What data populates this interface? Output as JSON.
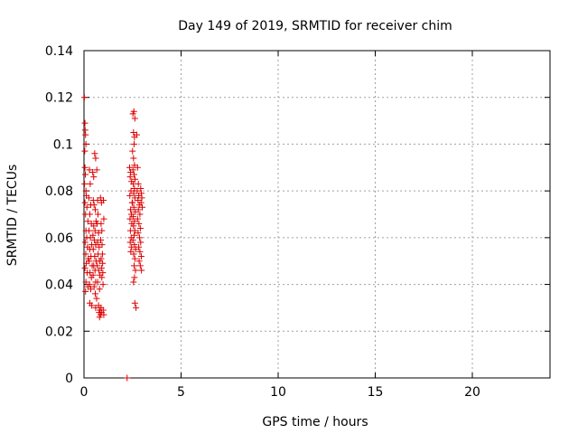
{
  "chart_data": {
    "type": "scatter",
    "title": "Day 149 of 2019, SRMTID for receiver chim",
    "xlabel": "GPS time / hours",
    "ylabel": "SRMTID / TECUs",
    "xlim": [
      0,
      24
    ],
    "ylim": [
      0,
      0.14
    ],
    "xticks": [
      "0",
      "5",
      "10",
      "15",
      "20"
    ],
    "xtick_values": [
      0,
      5,
      10,
      15,
      20
    ],
    "yticks": [
      "0",
      "0.02",
      "0.04",
      "0.06",
      "0.08",
      "0.1",
      "0.12",
      "0.14"
    ],
    "ytick_values": [
      0,
      0.02,
      0.04,
      0.06,
      0.08,
      0.1,
      0.12,
      0.14
    ],
    "grid": true,
    "marker": "plus",
    "color": "#dd0000",
    "series": [
      {
        "points": [
          [
            0.02,
            0.12
          ],
          [
            0.05,
            0.109
          ],
          [
            0.06,
            0.106
          ],
          [
            0.08,
            0.104
          ],
          [
            0.1,
            0.1
          ],
          [
            0.04,
            0.097
          ],
          [
            0.05,
            0.09
          ],
          [
            0.07,
            0.087
          ],
          [
            0.03,
            0.083
          ],
          [
            0.1,
            0.08
          ],
          [
            0.12,
            0.078
          ],
          [
            0.05,
            0.075
          ],
          [
            0.15,
            0.073
          ],
          [
            0.08,
            0.07
          ],
          [
            0.2,
            0.067
          ],
          [
            0.1,
            0.063
          ],
          [
            0.14,
            0.06
          ],
          [
            0.06,
            0.058
          ],
          [
            0.18,
            0.056
          ],
          [
            0.09,
            0.053
          ],
          [
            0.22,
            0.051
          ],
          [
            0.12,
            0.049
          ],
          [
            0.05,
            0.047
          ],
          [
            0.16,
            0.045
          ],
          [
            0.1,
            0.041
          ],
          [
            0.2,
            0.039
          ],
          [
            0.08,
            0.037
          ],
          [
            0.28,
            0.089
          ],
          [
            0.32,
            0.083
          ],
          [
            0.25,
            0.077
          ],
          [
            0.35,
            0.074
          ],
          [
            0.3,
            0.07
          ],
          [
            0.38,
            0.066
          ],
          [
            0.26,
            0.063
          ],
          [
            0.33,
            0.06
          ],
          [
            0.4,
            0.057
          ],
          [
            0.3,
            0.055
          ],
          [
            0.36,
            0.052
          ],
          [
            0.27,
            0.05
          ],
          [
            0.42,
            0.048
          ],
          [
            0.31,
            0.045
          ],
          [
            0.38,
            0.043
          ],
          [
            0.29,
            0.04
          ],
          [
            0.35,
            0.038
          ],
          [
            0.3,
            0.032
          ],
          [
            0.4,
            0.031
          ],
          [
            0.45,
            0.088
          ],
          [
            0.5,
            0.086
          ],
          [
            0.55,
            0.096
          ],
          [
            0.6,
            0.094
          ],
          [
            0.48,
            0.076
          ],
          [
            0.52,
            0.074
          ],
          [
            0.58,
            0.072
          ],
          [
            0.62,
            0.067
          ],
          [
            0.5,
            0.065
          ],
          [
            0.57,
            0.063
          ],
          [
            0.46,
            0.061
          ],
          [
            0.53,
            0.059
          ],
          [
            0.6,
            0.057
          ],
          [
            0.48,
            0.055
          ],
          [
            0.55,
            0.052
          ],
          [
            0.62,
            0.05
          ],
          [
            0.5,
            0.048
          ],
          [
            0.57,
            0.046
          ],
          [
            0.47,
            0.044
          ],
          [
            0.6,
            0.041
          ],
          [
            0.52,
            0.039
          ],
          [
            0.58,
            0.036
          ],
          [
            0.65,
            0.034
          ],
          [
            0.6,
            0.03
          ],
          [
            0.66,
            0.089
          ],
          [
            0.7,
            0.076
          ],
          [
            0.72,
            0.07
          ],
          [
            0.68,
            0.066
          ],
          [
            0.75,
            0.062
          ],
          [
            0.7,
            0.058
          ],
          [
            0.78,
            0.056
          ],
          [
            0.73,
            0.053
          ],
          [
            0.8,
            0.05
          ],
          [
            0.68,
            0.048
          ],
          [
            0.76,
            0.046
          ],
          [
            0.82,
            0.044
          ],
          [
            0.7,
            0.041
          ],
          [
            0.8,
            0.038
          ],
          [
            0.75,
            0.031
          ],
          [
            0.82,
            0.029
          ],
          [
            0.78,
            0.028
          ],
          [
            0.85,
            0.027
          ],
          [
            0.8,
            0.026
          ],
          [
            0.88,
            0.03
          ],
          [
            0.9,
            0.028
          ],
          [
            0.85,
            0.077
          ],
          [
            0.9,
            0.075
          ],
          [
            0.88,
            0.066
          ],
          [
            0.92,
            0.063
          ],
          [
            0.86,
            0.059
          ],
          [
            0.93,
            0.057
          ],
          [
            0.95,
            0.053
          ],
          [
            0.88,
            0.051
          ],
          [
            0.96,
            0.049
          ],
          [
            0.9,
            0.047
          ],
          [
            0.97,
            0.045
          ],
          [
            0.92,
            0.043
          ],
          [
            0.98,
            0.04
          ],
          [
            1.0,
            0.076
          ],
          [
            1.02,
            0.068
          ],
          [
            0.99,
            0.029
          ],
          [
            1.02,
            0.027
          ],
          [
            2.22,
            0.0
          ],
          [
            2.35,
            0.09
          ],
          [
            2.4,
            0.088
          ],
          [
            2.38,
            0.086
          ],
          [
            2.45,
            0.084
          ],
          [
            2.42,
            0.08
          ],
          [
            2.36,
            0.078
          ],
          [
            2.48,
            0.075
          ],
          [
            2.4,
            0.072
          ],
          [
            2.44,
            0.07
          ],
          [
            2.37,
            0.068
          ],
          [
            2.46,
            0.066
          ],
          [
            2.39,
            0.063
          ],
          [
            2.43,
            0.06
          ],
          [
            2.38,
            0.058
          ],
          [
            2.45,
            0.056
          ],
          [
            2.41,
            0.054
          ],
          [
            2.52,
            0.113
          ],
          [
            2.57,
            0.114
          ],
          [
            2.62,
            0.111
          ],
          [
            2.55,
            0.105
          ],
          [
            2.6,
            0.103
          ],
          [
            2.58,
            0.1
          ],
          [
            2.5,
            0.097
          ],
          [
            2.55,
            0.094
          ],
          [
            2.6,
            0.091
          ],
          [
            2.52,
            0.089
          ],
          [
            2.58,
            0.087
          ],
          [
            2.63,
            0.085
          ],
          [
            2.54,
            0.083
          ],
          [
            2.6,
            0.081
          ],
          [
            2.56,
            0.079
          ],
          [
            2.62,
            0.077
          ],
          [
            2.5,
            0.075
          ],
          [
            2.57,
            0.073
          ],
          [
            2.64,
            0.071
          ],
          [
            2.53,
            0.069
          ],
          [
            2.6,
            0.067
          ],
          [
            2.55,
            0.065
          ],
          [
            2.62,
            0.063
          ],
          [
            2.58,
            0.061
          ],
          [
            2.52,
            0.059
          ],
          [
            2.6,
            0.057
          ],
          [
            2.66,
            0.055
          ],
          [
            2.56,
            0.053
          ],
          [
            2.62,
            0.051
          ],
          [
            2.58,
            0.048
          ],
          [
            2.65,
            0.046
          ],
          [
            2.6,
            0.043
          ],
          [
            2.55,
            0.041
          ],
          [
            2.62,
            0.032
          ],
          [
            2.68,
            0.03
          ],
          [
            2.72,
            0.104
          ],
          [
            2.76,
            0.09
          ],
          [
            2.8,
            0.083
          ],
          [
            2.74,
            0.08
          ],
          [
            2.82,
            0.078
          ],
          [
            2.78,
            0.076
          ],
          [
            2.85,
            0.074
          ],
          [
            2.8,
            0.072
          ],
          [
            2.88,
            0.07
          ],
          [
            2.76,
            0.068
          ],
          [
            2.83,
            0.066
          ],
          [
            2.9,
            0.064
          ],
          [
            2.79,
            0.062
          ],
          [
            2.86,
            0.06
          ],
          [
            2.92,
            0.058
          ],
          [
            2.82,
            0.056
          ],
          [
            2.88,
            0.054
          ],
          [
            2.95,
            0.052
          ],
          [
            2.84,
            0.05
          ],
          [
            2.9,
            0.048
          ],
          [
            2.96,
            0.046
          ],
          [
            2.92,
            0.081
          ],
          [
            2.95,
            0.079
          ],
          [
            2.98,
            0.077
          ],
          [
            2.94,
            0.075
          ],
          [
            3.0,
            0.073
          ]
        ]
      }
    ]
  }
}
